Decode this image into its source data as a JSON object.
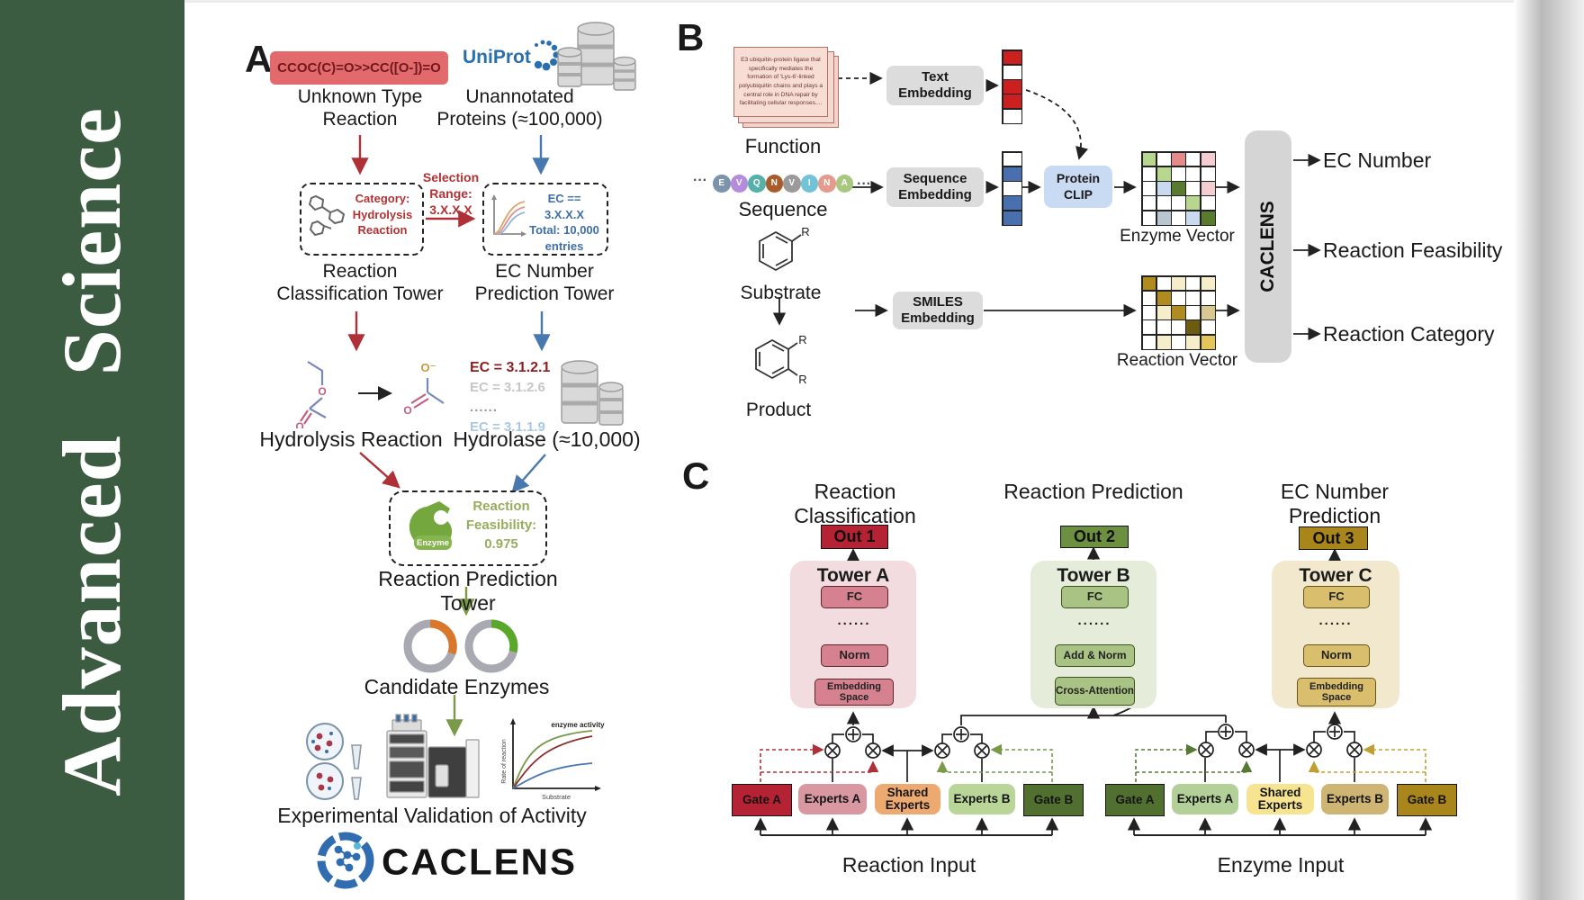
{
  "journal": {
    "title": "Advanced Science"
  },
  "colors": {
    "banner_green": "#3c5c42",
    "smiles_box": "#e26a6d",
    "accent_red": "#b03038",
    "accent_blue": "#4878b0",
    "accent_green": "#7a9a4a",
    "out1": "#b52233",
    "out2": "#6d9040",
    "out3": "#a8861b",
    "cell_palette": {
      "w": "#ffffff",
      "lg": "#b8d78e",
      "sr": "#e58a8a",
      "pp": "#f3cdd0",
      "dg": "#5a7a2e",
      "pb": "#c9daf0",
      "gb": "#b9c6cf",
      "dy": "#b08b20",
      "py": "#f6eecb",
      "ol": "#6b5c12",
      "go": "#e3c55a",
      "tn": "#d9c791",
      "r": "#cc2020",
      "b": "#4a6fae"
    }
  },
  "panelA": {
    "label": "A",
    "smiles": "CCOC(C)=O>>CC([O-])=O",
    "unknown_line1": "Unknown Type",
    "unknown_line2": "Reaction",
    "uniprot": "UniProt",
    "unannotated_line1": "Unannotated",
    "unannotated_line2": "Proteins (≈100,000)",
    "category_box": {
      "line1": "Category:",
      "line2": "Hydrolysis",
      "line3": "Reaction"
    },
    "selection": {
      "line1": "Selection",
      "line2": "Range:",
      "line3": "3.X.X.X"
    },
    "ec_box": {
      "line1": "EC == 3.X.X.X",
      "line2": "Total: 10,000",
      "line3": "entries"
    },
    "tower1_line1": "Reaction",
    "tower1_line2": "Classification Tower",
    "tower2_line1": "EC Number",
    "tower2_line2": "Prediction Tower",
    "atom_o": "O",
    "atom_o_minus": "O⁻",
    "hydrolysis": "Hydrolysis Reaction",
    "ec_list": [
      "EC = 3.1.2.1",
      "EC = 3.1.2.6",
      "......",
      "EC = 3.1.1.9"
    ],
    "hydrolase": "Hydrolase (≈10,000)",
    "enzyme_label": "Enzyme",
    "feasibility": {
      "line1": "Reaction",
      "line2": "Feasibility:",
      "line3": "0.975"
    },
    "tower3": "Reaction Prediction Tower",
    "candidates": "Candidate Enzymes",
    "plot": {
      "title": "enzyme activity",
      "ylabel": "Rate of reaction",
      "xlabel": "Substrate"
    },
    "validation": "Experimental Validation of Activity",
    "logo": "CACLENS"
  },
  "panelB": {
    "label": "B",
    "function_card": "E3 ubiquitin-protein ligase that specifically mediates the formation of 'Lys-6'-linked polyubiquitin chains and plays a central role in DNA repair by facilitating cellular responses....",
    "function": "Function",
    "ellipsis": "···",
    "sequence_letters": [
      "E",
      "V",
      "Q",
      "N",
      "V",
      "I",
      "N",
      "A"
    ],
    "sequence_colors": [
      "#7d93ab",
      "#b48cdb",
      "#57b0a8",
      "#a85c2a",
      "#9a9a9a",
      "#72c3d6",
      "#e49a8c",
      "#a9c87f"
    ],
    "sequence": "Sequence",
    "substrate": "Substrate",
    "product": "Product",
    "r_label": "R",
    "text_embedding": "Text Embedding",
    "sequence_embedding": "Sequence Embedding",
    "smiles_embedding": "SMILES Embedding",
    "protein_clip_line1": "Protein",
    "protein_clip_line2": "CLIP",
    "text_vector": [
      "r",
      "w",
      "r",
      "r",
      "w"
    ],
    "seq_vector": [
      "w",
      "b",
      "w",
      "b",
      "b"
    ],
    "enzyme_grid": [
      [
        "lg",
        "w",
        "sr",
        "w",
        "pp"
      ],
      [
        "w",
        "lg",
        "w",
        "w",
        "w"
      ],
      [
        "w",
        "pb",
        "dg",
        "w",
        "pp"
      ],
      [
        "w",
        "w",
        "w",
        "lg",
        "w"
      ],
      [
        "w",
        "gb",
        "w",
        "pb",
        "dg"
      ]
    ],
    "reaction_grid": [
      [
        "dy",
        "w",
        "py",
        "w",
        "py"
      ],
      [
        "w",
        "dy",
        "w",
        "w",
        "w"
      ],
      [
        "w",
        "py",
        "dy",
        "w",
        "tn"
      ],
      [
        "w",
        "w",
        "w",
        "ol",
        "w"
      ],
      [
        "w",
        "py",
        "w",
        "py",
        "go"
      ]
    ],
    "enzyme_vector": "Enzyme Vector",
    "reaction_vector": "Reaction Vector",
    "caclens": "CACLENS",
    "outputs": [
      "EC Number",
      "Reaction Feasibility",
      "Reaction Category"
    ]
  },
  "panelC": {
    "label": "C",
    "titles": [
      "Reaction Classification",
      "Reaction Prediction",
      "EC Number Prediction"
    ],
    "outs": [
      "Out 1",
      "Out 2",
      "Out 3"
    ],
    "towers": [
      {
        "name": "Tower A",
        "layers": [
          "FC",
          "......",
          "Norm",
          "Embedding Space"
        ]
      },
      {
        "name": "Tower B",
        "layers": [
          "FC",
          "......",
          "Add & Norm",
          "Cross-Attention"
        ]
      },
      {
        "name": "Tower C",
        "layers": [
          "FC",
          "......",
          "Norm",
          "Embedding Space"
        ]
      }
    ],
    "moe_left": {
      "gate_a": "Gate A",
      "experts_a": "Experts A",
      "shared_line1": "Shared",
      "shared_line2": "Experts",
      "experts_b": "Experts B",
      "gate_b": "Gate B",
      "input": "Reaction Input"
    },
    "moe_right": {
      "gate_a": "Gate A",
      "experts_a": "Experts A",
      "shared_line1": "Shared",
      "shared_line2": "Experts",
      "experts_b": "Experts B",
      "gate_b": "Gate B",
      "input": "Enzyme Input"
    }
  }
}
